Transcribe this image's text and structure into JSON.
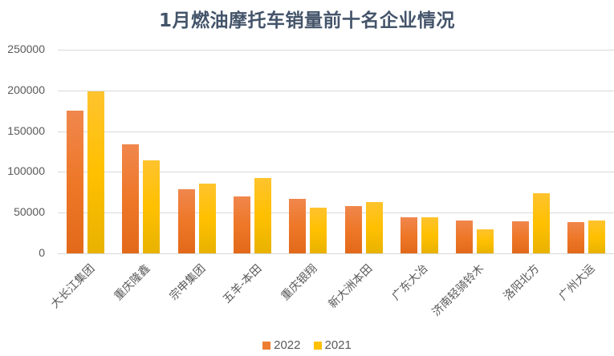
{
  "chart_data": {
    "type": "bar",
    "title": "1月燃油摩托车销量前十名企业情况",
    "xlabel": "",
    "ylabel": "",
    "ylim": [
      0,
      250000
    ],
    "yticks": [
      0,
      50000,
      100000,
      150000,
      200000,
      250000
    ],
    "grid": true,
    "legend_position": "bottom",
    "categories": [
      "大长江集团",
      "重庆隆鑫",
      "宗申集团",
      "五羊-本田",
      "重庆银翔",
      "新大洲本田",
      "广东大冶",
      "济南轻骑铃木",
      "洛阳北方",
      "广州大运"
    ],
    "series": [
      {
        "name": "2022",
        "color": "#ed7d31",
        "values": [
          175000,
          134000,
          79000,
          70000,
          67000,
          58000,
          44000,
          40000,
          39000,
          38000
        ]
      },
      {
        "name": "2021",
        "color": "#ffc000",
        "values": [
          199000,
          114000,
          86000,
          93000,
          56000,
          63000,
          44000,
          30000,
          74000,
          40000
        ]
      }
    ]
  },
  "legend": [
    {
      "label": "2022",
      "color": "#ed7d31"
    },
    {
      "label": "2021",
      "color": "#ffc000"
    }
  ]
}
